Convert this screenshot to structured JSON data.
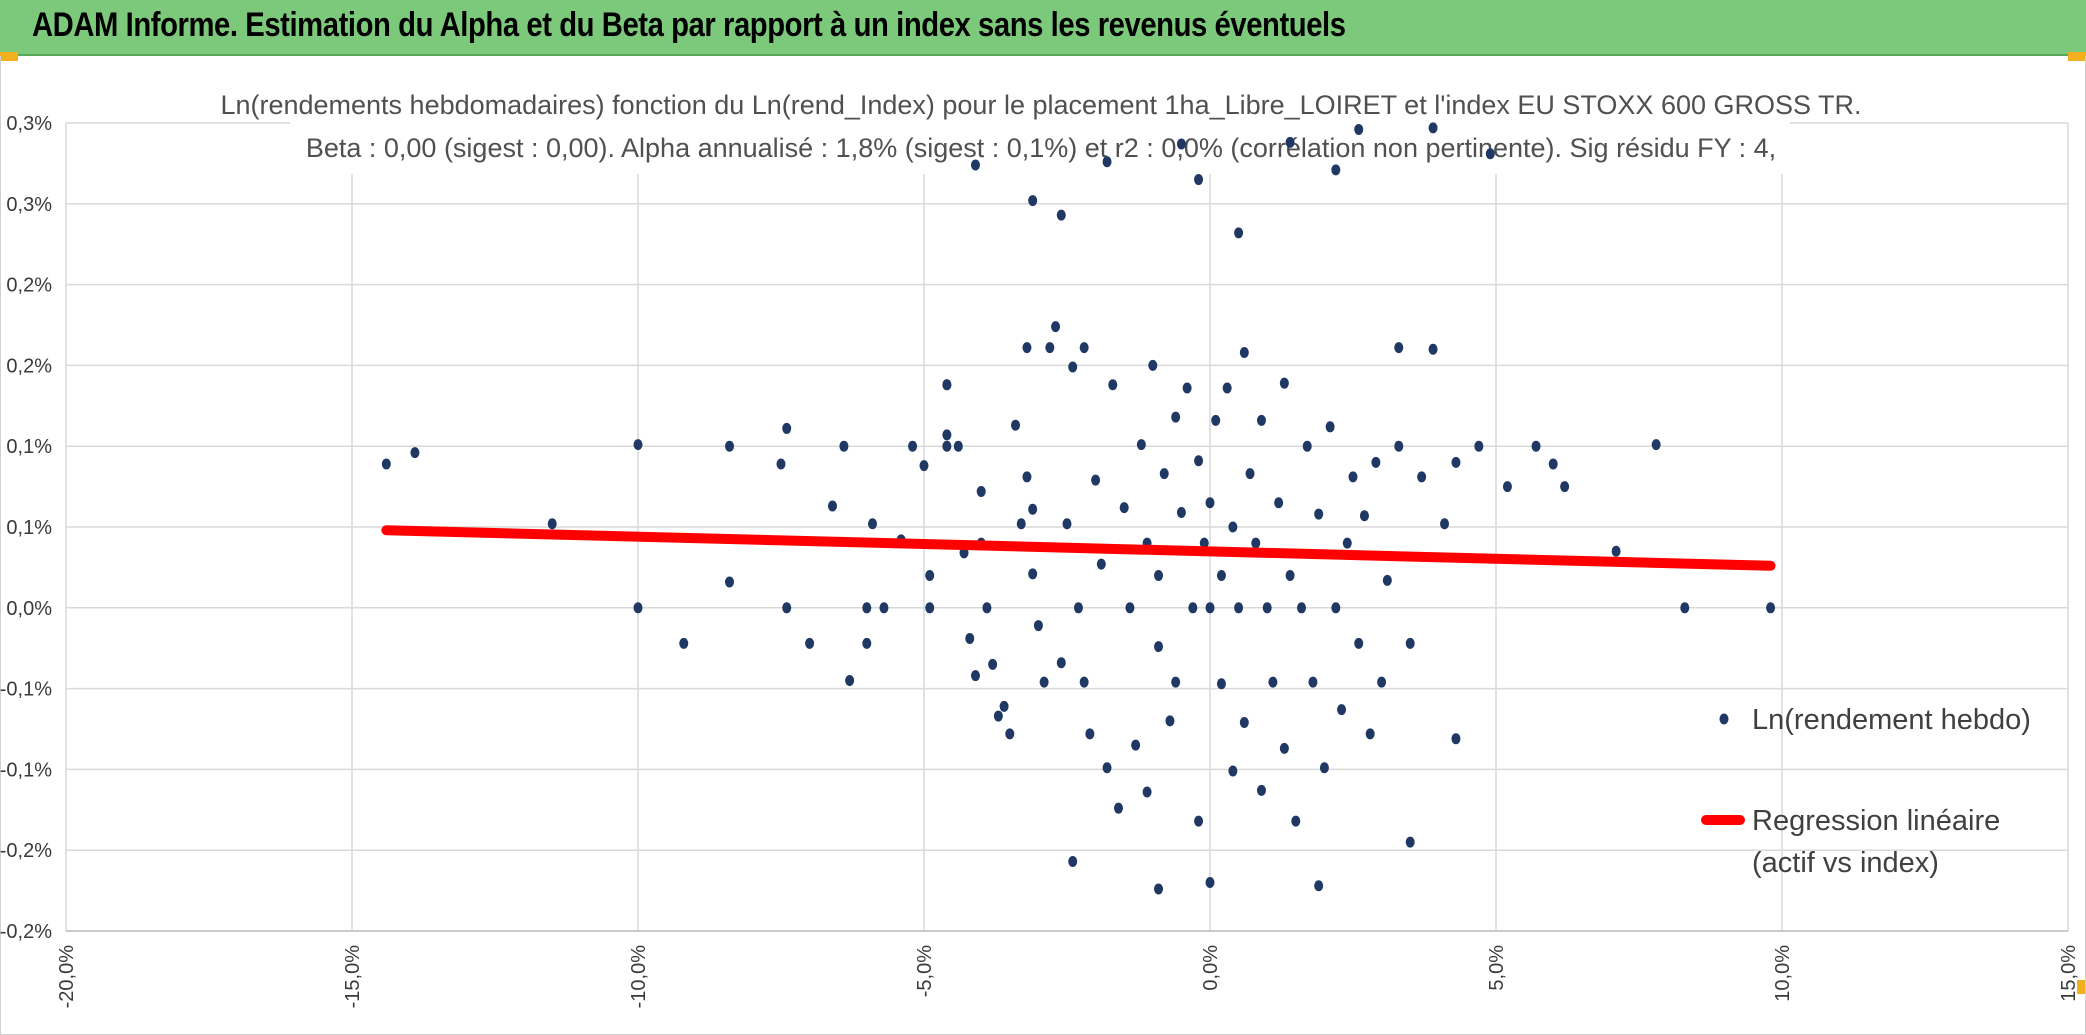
{
  "header": {
    "title": "ADAM Informe. Estimation du Alpha et du Beta par rapport à un index sans les revenus éventuels",
    "background_color": "#7dc97b",
    "corner_color": "#f2b01e"
  },
  "chart_data": {
    "type": "scatter",
    "title_line1": "Ln(rendements hebdomadaires) fonction du Ln(rend_Index) pour le placement 1ha_Libre_LOIRET et l'index EU STOXX 600 GROSS TR.",
    "title_line2": "Beta : 0,00 (sigest : 0,00). Alpha annualisé : 1,8% (sigest : 0,1%) et r2 : 0,0% (corrélation non pertinente). Sig résidu FY : 4,",
    "xlabel": "",
    "ylabel": "",
    "xlim": [
      -20,
      15
    ],
    "ylim": [
      -0.2,
      0.3
    ],
    "x_ticks": [
      -20,
      -15,
      -10,
      -5,
      0,
      5,
      10,
      15
    ],
    "x_tick_labels": [
      "-20,0%",
      "-15,0%",
      "-10,0%",
      "-5,0%",
      "0,0%",
      "5,0%",
      "10,0%",
      "15,0%"
    ],
    "y_ticks": [
      -0.2,
      -0.15,
      -0.1,
      -0.05,
      0,
      0.05,
      0.1,
      0.15,
      0.2,
      0.25,
      0.3
    ],
    "y_tick_labels": [
      "-0,2%",
      "-0,2%",
      "-0,1%",
      "-0,1%",
      "0,0%",
      "0,1%",
      "0,1%",
      "0,2%",
      "0,2%",
      "0,3%",
      "0,3%"
    ],
    "grid": true,
    "legend_position": "right",
    "series": [
      {
        "name": "Ln(rendement hebdo)",
        "color": "#1f3864",
        "marker": "circle",
        "points": [
          [
            -14.4,
            0.089
          ],
          [
            -13.9,
            0.096
          ],
          [
            -11.5,
            0.052
          ],
          [
            -10.0,
            0.101
          ],
          [
            -10.0,
            0.0
          ],
          [
            -9.2,
            -0.022
          ],
          [
            -8.4,
            0.1
          ],
          [
            -8.4,
            0.016
          ],
          [
            -7.4,
            0.111
          ],
          [
            -7.5,
            0.089
          ],
          [
            -7.4,
            0.0
          ],
          [
            -7.0,
            -0.022
          ],
          [
            -6.6,
            0.063
          ],
          [
            -6.4,
            0.1
          ],
          [
            -6.3,
            -0.045
          ],
          [
            -6.0,
            0.0
          ],
          [
            -6.0,
            -0.022
          ],
          [
            -5.7,
            0.0
          ],
          [
            -5.9,
            0.052
          ],
          [
            -5.4,
            0.042
          ],
          [
            -5.2,
            0.1
          ],
          [
            -5.0,
            0.088
          ],
          [
            -4.9,
            0.0
          ],
          [
            -4.9,
            0.02
          ],
          [
            -4.6,
            0.1
          ],
          [
            -4.6,
            0.107
          ],
          [
            -4.6,
            0.138
          ],
          [
            -4.4,
            0.1
          ],
          [
            -4.3,
            0.034
          ],
          [
            -4.2,
            -0.019
          ],
          [
            -4.1,
            -0.042
          ],
          [
            -4.0,
            0.072
          ],
          [
            -4.0,
            0.04
          ],
          [
            -3.9,
            0.0
          ],
          [
            -3.8,
            -0.035
          ],
          [
            -3.7,
            -0.067
          ],
          [
            -3.6,
            -0.061
          ],
          [
            -3.5,
            -0.078
          ],
          [
            -3.4,
            0.113
          ],
          [
            -3.3,
            0.052
          ],
          [
            -3.2,
            0.081
          ],
          [
            -3.1,
            0.061
          ],
          [
            -3.1,
            0.021
          ],
          [
            -3.0,
            -0.011
          ],
          [
            -2.9,
            -0.046
          ],
          [
            -2.8,
            0.161
          ],
          [
            -2.7,
            0.174
          ],
          [
            -2.6,
            -0.034
          ],
          [
            -2.5,
            0.052
          ],
          [
            -2.4,
            0.149
          ],
          [
            -2.3,
            0.0
          ],
          [
            -2.2,
            -0.046
          ],
          [
            -2.2,
            0.161
          ],
          [
            -2.1,
            -0.078
          ],
          [
            -2.0,
            0.079
          ],
          [
            -1.9,
            0.027
          ],
          [
            -1.8,
            -0.099
          ],
          [
            -1.7,
            0.138
          ],
          [
            -1.6,
            -0.124
          ],
          [
            -1.5,
            0.062
          ],
          [
            -1.4,
            0.0
          ],
          [
            -1.3,
            -0.085
          ],
          [
            -1.2,
            0.101
          ],
          [
            -1.1,
            -0.114
          ],
          [
            -1.1,
            0.04
          ],
          [
            -1.0,
            0.15
          ],
          [
            -0.9,
            -0.024
          ],
          [
            -0.9,
            0.02
          ],
          [
            -0.8,
            0.083
          ],
          [
            -0.7,
            -0.07
          ],
          [
            -0.6,
            0.118
          ],
          [
            -0.6,
            -0.046
          ],
          [
            -0.5,
            0.059
          ],
          [
            -0.4,
            0.136
          ],
          [
            -0.3,
            0.0
          ],
          [
            -0.2,
            -0.132
          ],
          [
            -0.2,
            0.091
          ],
          [
            -0.1,
            0.04
          ],
          [
            0.0,
            0.0
          ],
          [
            0.0,
            0.065
          ],
          [
            0.1,
            0.116
          ],
          [
            0.2,
            -0.047
          ],
          [
            0.2,
            0.02
          ],
          [
            0.3,
            0.136
          ],
          [
            0.4,
            -0.101
          ],
          [
            0.4,
            0.05
          ],
          [
            0.5,
            0.0
          ],
          [
            0.6,
            0.158
          ],
          [
            0.6,
            -0.071
          ],
          [
            0.7,
            0.083
          ],
          [
            0.8,
            0.04
          ],
          [
            0.9,
            -0.113
          ],
          [
            0.9,
            0.116
          ],
          [
            1.0,
            0.0
          ],
          [
            1.1,
            -0.046
          ],
          [
            1.2,
            0.065
          ],
          [
            1.3,
            -0.087
          ],
          [
            1.3,
            0.139
          ],
          [
            1.4,
            0.02
          ],
          [
            1.5,
            -0.132
          ],
          [
            1.6,
            0.0
          ],
          [
            1.7,
            0.1
          ],
          [
            1.8,
            -0.046
          ],
          [
            1.9,
            0.058
          ],
          [
            2.0,
            -0.099
          ],
          [
            2.1,
            0.112
          ],
          [
            2.2,
            0.0
          ],
          [
            2.3,
            -0.063
          ],
          [
            2.4,
            0.04
          ],
          [
            2.5,
            0.081
          ],
          [
            2.6,
            -0.022
          ],
          [
            2.7,
            0.057
          ],
          [
            2.8,
            -0.078
          ],
          [
            2.9,
            0.09
          ],
          [
            3.0,
            -0.046
          ],
          [
            3.1,
            0.017
          ],
          [
            3.3,
            0.1
          ],
          [
            3.5,
            -0.022
          ],
          [
            3.7,
            0.081
          ],
          [
            4.1,
            0.052
          ],
          [
            4.3,
            0.09
          ],
          [
            4.7,
            0.1
          ],
          [
            5.2,
            0.075
          ],
          [
            5.7,
            0.1
          ],
          [
            6.0,
            0.089
          ],
          [
            6.2,
            0.075
          ],
          [
            7.1,
            0.035
          ],
          [
            7.8,
            0.101
          ],
          [
            8.3,
            0.0
          ],
          [
            9.8,
            0.0
          ],
          [
            4.3,
            -0.081
          ],
          [
            3.5,
            -0.145
          ],
          [
            -0.9,
            -0.174
          ],
          [
            1.9,
            -0.172
          ],
          [
            -2.4,
            -0.157
          ],
          [
            0.0,
            -0.17
          ],
          [
            -3.1,
            0.252
          ],
          [
            -2.6,
            0.243
          ],
          [
            -1.8,
            0.276
          ],
          [
            -0.5,
            0.287
          ],
          [
            0.5,
            0.232
          ],
          [
            1.4,
            0.288
          ],
          [
            2.6,
            0.296
          ],
          [
            3.9,
            0.297
          ],
          [
            4.9,
            0.281
          ],
          [
            -4.1,
            0.274
          ],
          [
            -0.2,
            0.265
          ],
          [
            2.2,
            0.271
          ],
          [
            -3.2,
            0.161
          ],
          [
            3.3,
            0.161
          ],
          [
            3.9,
            0.16
          ],
          [
            -4.6,
            0.138
          ]
        ]
      },
      {
        "name": "Regression linéaire\n(actif vs index)",
        "color": "#ff0000",
        "type": "line",
        "x": [
          -14.4,
          9.8
        ],
        "y": [
          0.048,
          0.026
        ]
      }
    ]
  }
}
